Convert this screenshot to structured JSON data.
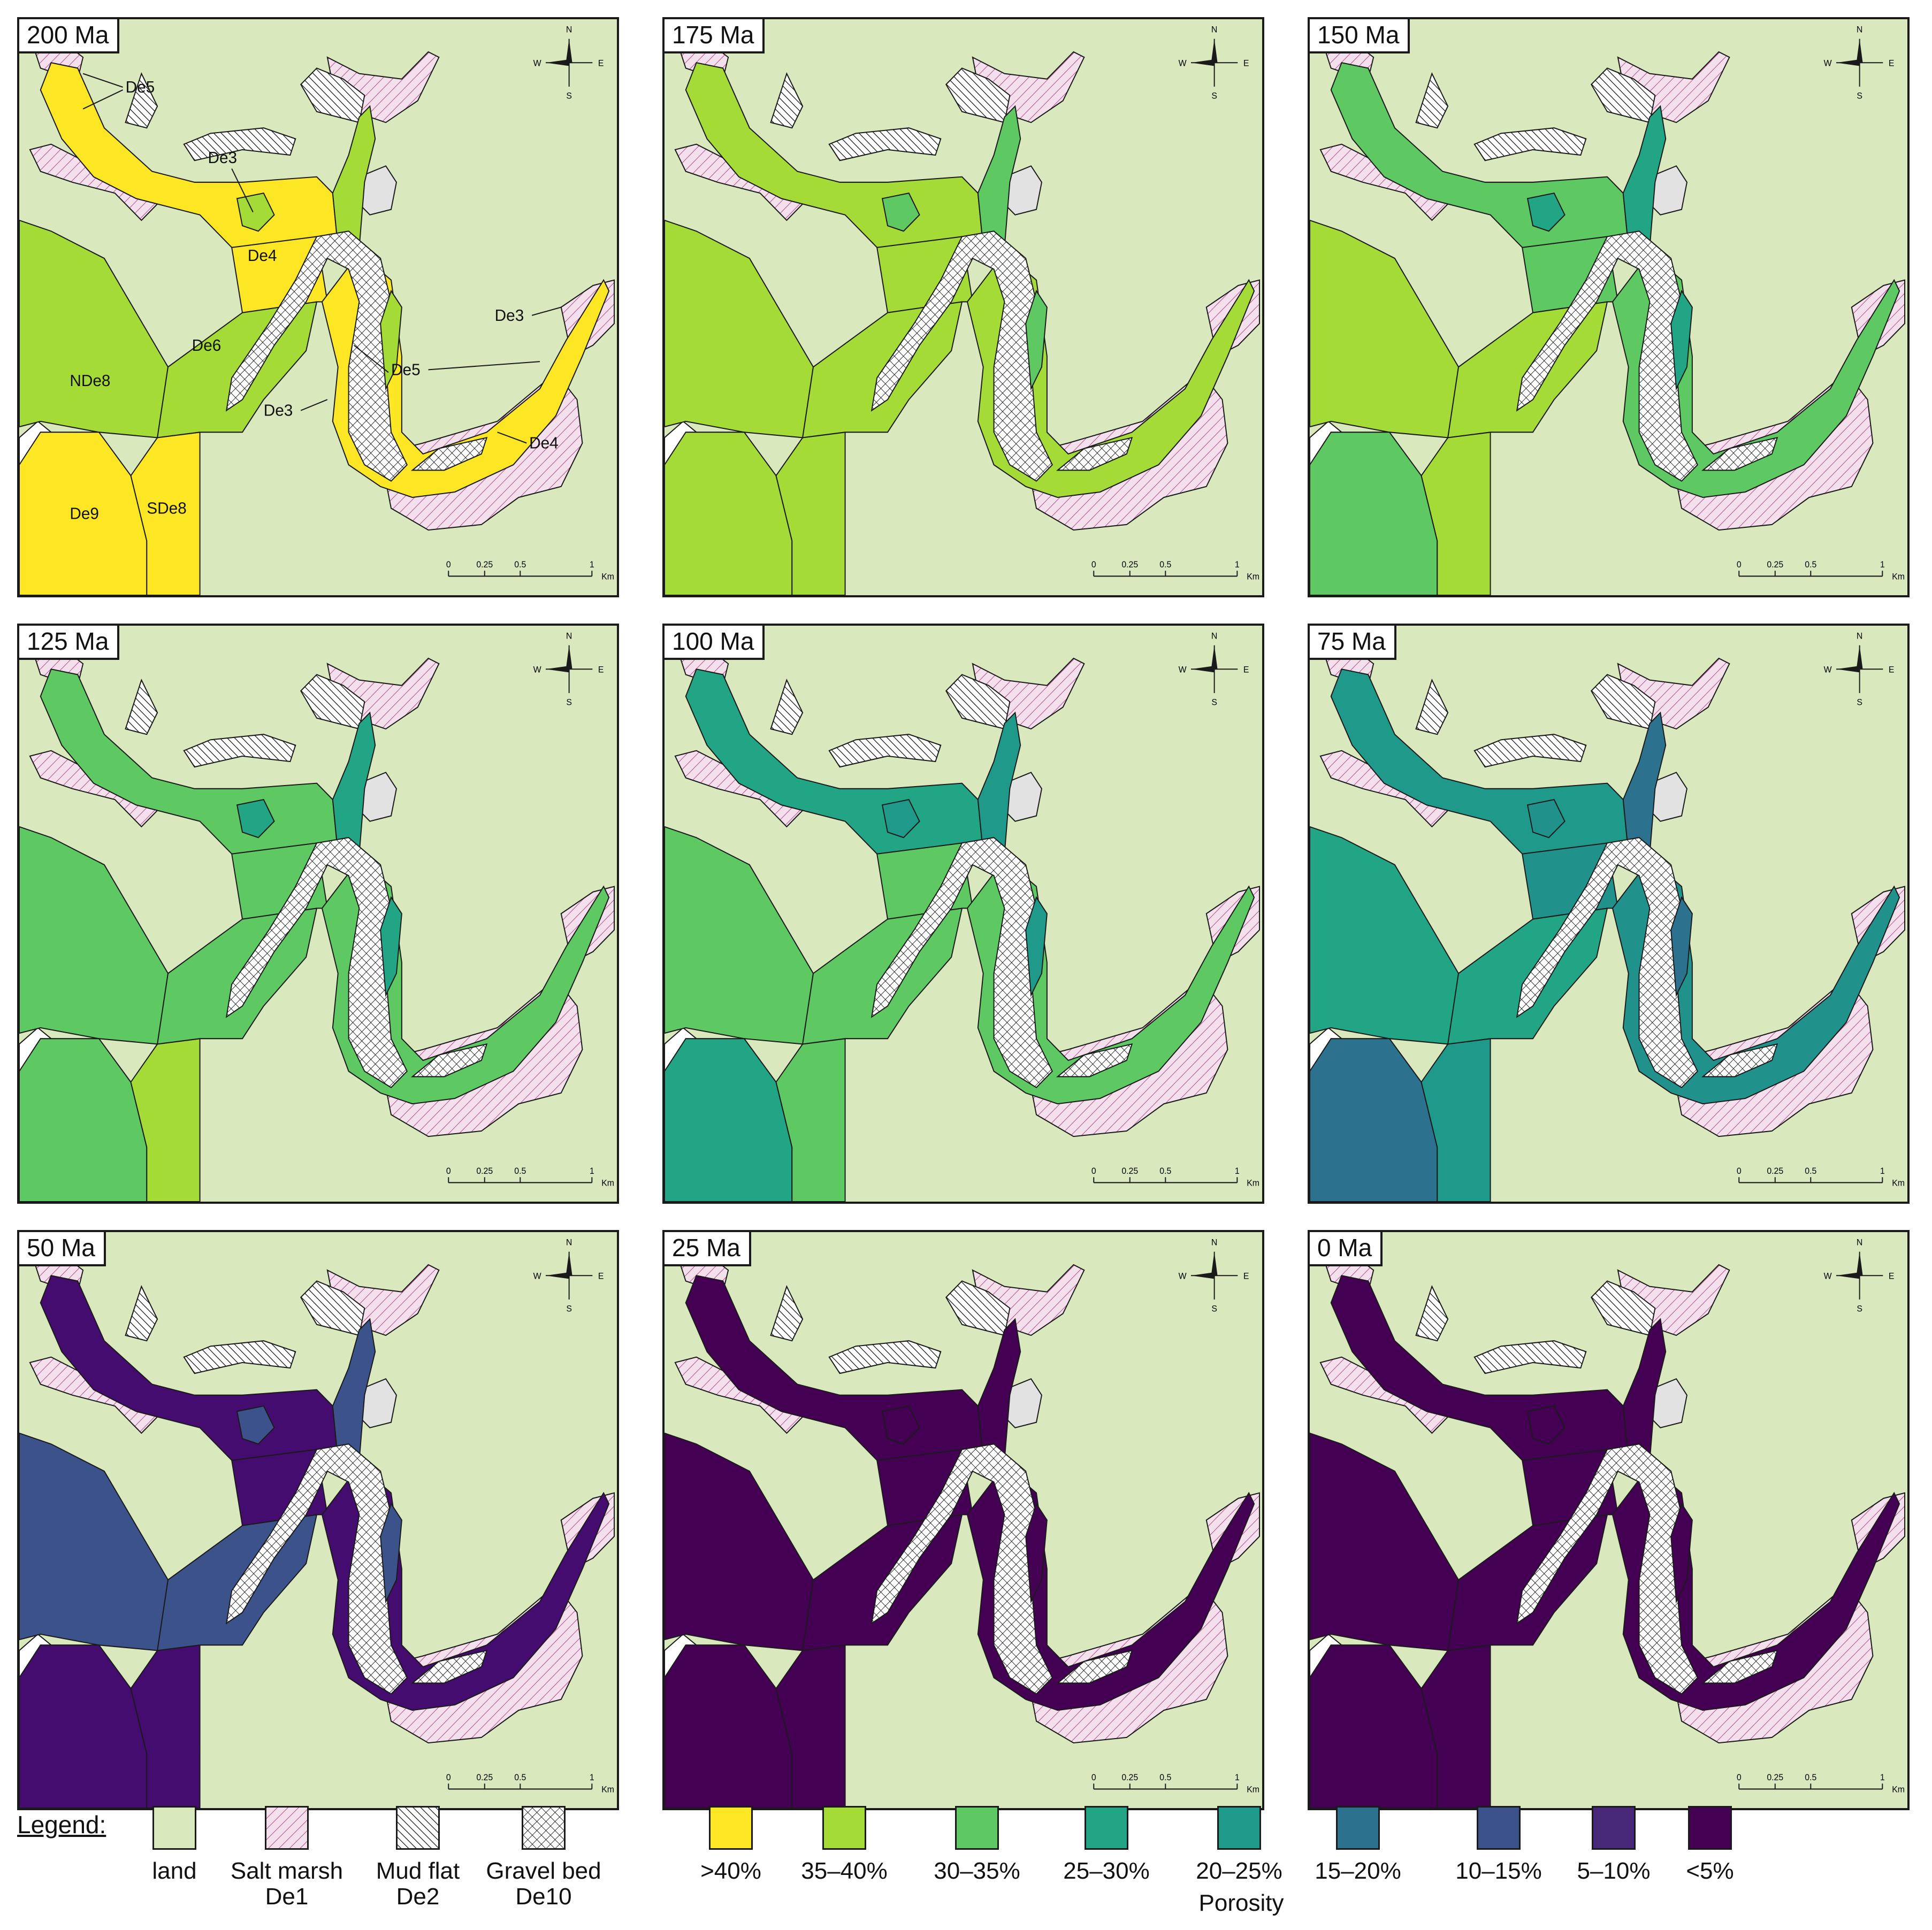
{
  "panels": [
    {
      "age": "200 Ma",
      "show_labels": true,
      "colors": {
        "north": "#fde725",
        "de3_lake": "#a5db36",
        "de4": "#fde725",
        "de6": "#a5db36",
        "nde8": "#a5db36",
        "de9": "#fde725",
        "sde8": "#fde725",
        "east": "#fde725",
        "rim": "#a5db36"
      }
    },
    {
      "age": "175 Ma",
      "show_labels": false,
      "colors": {
        "north": "#a5db36",
        "de3_lake": "#5ec962",
        "de4": "#a5db36",
        "de6": "#a5db36",
        "nde8": "#a5db36",
        "de9": "#a5db36",
        "sde8": "#a5db36",
        "east": "#a5db36",
        "rim": "#5ec962"
      }
    },
    {
      "age": "150 Ma",
      "show_labels": false,
      "colors": {
        "north": "#5ec962",
        "de3_lake": "#21a585",
        "de4": "#5ec962",
        "de6": "#a5db36",
        "nde8": "#a5db36",
        "de9": "#5ec962",
        "sde8": "#a5db36",
        "east": "#5ec962",
        "rim": "#21a585"
      }
    },
    {
      "age": "125 Ma",
      "show_labels": false,
      "colors": {
        "north": "#5ec962",
        "de3_lake": "#21a585",
        "de4": "#5ec962",
        "de6": "#5ec962",
        "nde8": "#5ec962",
        "de9": "#5ec962",
        "sde8": "#a5db36",
        "east": "#5ec962",
        "rim": "#21a585"
      }
    },
    {
      "age": "100 Ma",
      "show_labels": false,
      "colors": {
        "north": "#21a585",
        "de3_lake": "#1f9a8a",
        "de4": "#5ec962",
        "de6": "#5ec962",
        "nde8": "#5ec962",
        "de9": "#21a585",
        "sde8": "#5ec962",
        "east": "#5ec962",
        "rim": "#1f9a8a"
      }
    },
    {
      "age": "75 Ma",
      "show_labels": false,
      "colors": {
        "north": "#1f9a8a",
        "de3_lake": "#21918c",
        "de4": "#21918c",
        "de6": "#21a585",
        "nde8": "#21a585",
        "de9": "#2c728e",
        "sde8": "#1f9a8a",
        "east": "#21918c",
        "rim": "#2c728e"
      }
    },
    {
      "age": "50 Ma",
      "show_labels": false,
      "colors": {
        "north": "#440c6e",
        "de3_lake": "#3b528b",
        "de4": "#440c6e",
        "de6": "#3b528b",
        "nde8": "#3b528b",
        "de9": "#440c6e",
        "sde8": "#440c6e",
        "east": "#440c6e",
        "rim": "#3b528b"
      }
    },
    {
      "age": "25 Ma",
      "show_labels": false,
      "colors": {
        "north": "#440154",
        "de3_lake": "#440154",
        "de4": "#440154",
        "de6": "#440154",
        "nde8": "#440154",
        "de9": "#440154",
        "sde8": "#440154",
        "east": "#440154",
        "rim": "#440154"
      }
    },
    {
      "age": "0 Ma",
      "show_labels": false,
      "colors": {
        "north": "#440154",
        "de3_lake": "#440154",
        "de4": "#440154",
        "de6": "#440154",
        "nde8": "#440154",
        "de9": "#440154",
        "sde8": "#440154",
        "east": "#440154",
        "rim": "#440154"
      }
    }
  ],
  "map_labels": [
    "De5",
    "De3",
    "De4",
    "De6",
    "NDe8",
    "De9",
    "SDe8",
    "De3",
    "De5",
    "De3",
    "De4"
  ],
  "compass": {
    "n": "N",
    "s": "S",
    "e": "E",
    "w": "W"
  },
  "scale_bar": {
    "ticks": [
      "0",
      "0.25",
      "0.5",
      "1"
    ],
    "unit": "Km"
  },
  "legend": {
    "title": "Legend:",
    "facies": [
      {
        "label": "land",
        "fill": "#d9e8bd",
        "pattern": "none"
      },
      {
        "label": "Salt marsh\nDe1",
        "fill": "#f3e0ec",
        "pattern": "salt-marsh"
      },
      {
        "label": "Mud flat\nDe2",
        "fill": "#ffffff",
        "pattern": "mud-flat"
      },
      {
        "label": "Gravel bed\nDe10",
        "fill": "#ffffff",
        "pattern": "gravel-bed"
      }
    ],
    "porosity_classes": [
      {
        "label": ">40%",
        "color": "#fde725"
      },
      {
        "label": "35–40%",
        "color": "#a5db36"
      },
      {
        "label": "30–35%",
        "color": "#5ec962"
      },
      {
        "label": "25–30%",
        "color": "#21a585"
      },
      {
        "label": "20–25%",
        "color": "#1f9a8a"
      },
      {
        "label": "15–20%",
        "color": "#2c728e"
      },
      {
        "label": "10–15%",
        "color": "#3b528b"
      },
      {
        "label": "5–10%",
        "color": "#482878"
      },
      {
        "label": "<5%",
        "color": "#440154"
      }
    ],
    "porosity_title": "Porosity"
  }
}
